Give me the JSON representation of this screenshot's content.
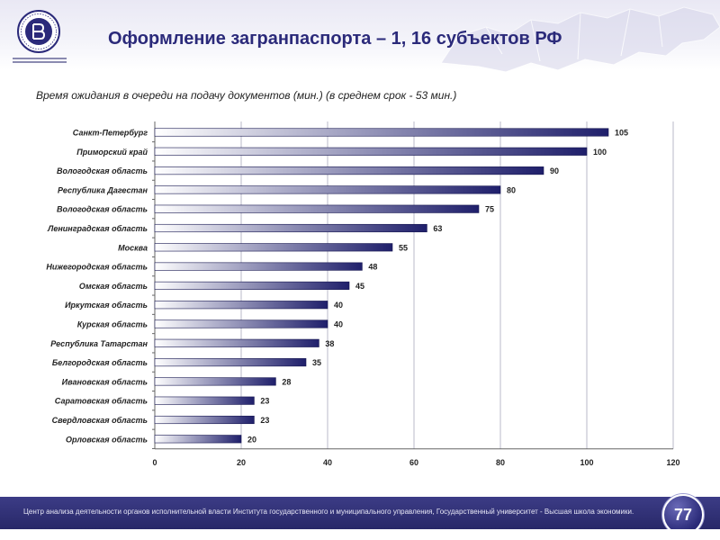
{
  "slide": {
    "title": "Оформление загранпаспорта – 1, 16 субъектов РФ",
    "subtitle": "Время ожидания в очереди на подачу документов (мин.) (в среднем срок - 53 мин.)",
    "footer_text": "Центр анализа деятельности органов исполнительной власти Института государственного  и муниципального управления, Государственный университет  - Высшая школа экономики.",
    "page_number": "77"
  },
  "colors": {
    "title": "#2b2a7a",
    "bar_dark": "#1f1f6b",
    "bar_light": "#ffffff",
    "footer": "#2e2e72"
  },
  "chart_data": {
    "type": "bar",
    "orientation": "horizontal",
    "title": "Время ожидания в очереди на подачу документов (мин.) (в среднем срок - 53 мин.)",
    "xlabel": "",
    "ylabel": "",
    "xlim": [
      0,
      120
    ],
    "xticks": [
      0,
      20,
      40,
      60,
      80,
      100,
      120
    ],
    "grid": true,
    "categories": [
      "Санкт-Петербург",
      "Приморский край",
      "Вологодская область",
      "Республика Дагестан",
      "Вологодская область",
      "Ленинградская область",
      "Москва",
      "Нижегородская область",
      "Омская область",
      "Иркутская область",
      "Курская область",
      "Республика Татарстан",
      "Белгородская область",
      "Ивановская область",
      "Саратовская область",
      "Свердловская область",
      "Орловская область"
    ],
    "values": [
      105,
      100,
      90,
      80,
      75,
      63,
      55,
      48,
      45,
      40,
      40,
      38,
      35,
      28,
      23,
      23,
      20
    ]
  }
}
